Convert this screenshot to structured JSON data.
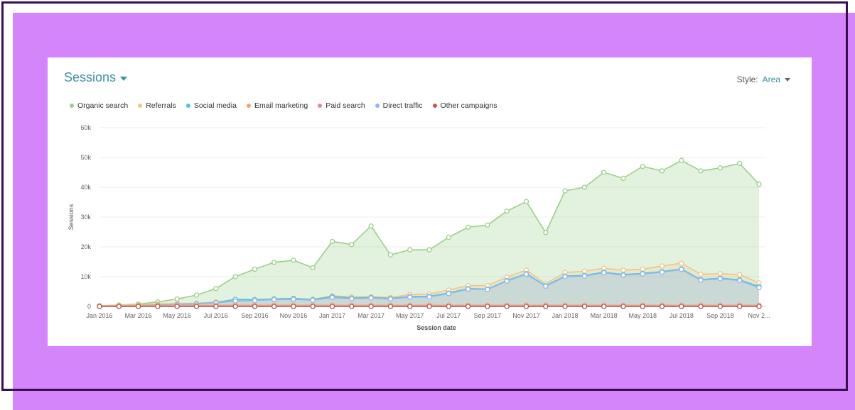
{
  "header": {
    "title": "Sessions",
    "style_label": "Style:",
    "style_value": "Area"
  },
  "colors": {
    "organic": "#9ccf8a",
    "referrals": "#f2c38b",
    "social": "#53c3d8",
    "email": "#f0a37a",
    "paid": "#df86ad",
    "direct": "#8fb7ec",
    "other": "#b95b50",
    "accent": "#3e8ea6",
    "background": "#d585fa",
    "frame": "#3a0f4f"
  },
  "legend": [
    {
      "label": "Organic search",
      "color": "#9ccf8a"
    },
    {
      "label": "Referrals",
      "color": "#f2c38b"
    },
    {
      "label": "Social media",
      "color": "#53c3d8"
    },
    {
      "label": "Email marketing",
      "color": "#f0a37a"
    },
    {
      "label": "Paid search",
      "color": "#df86ad"
    },
    {
      "label": "Direct traffic",
      "color": "#8fb7ec"
    },
    {
      "label": "Other campaigns",
      "color": "#b95b50"
    }
  ],
  "chart_data": {
    "type": "area",
    "xlabel": "Session date",
    "ylabel": "Sessions",
    "ylim": [
      0,
      60000
    ],
    "yticks": [
      "0",
      "10k",
      "20k",
      "30k",
      "40k",
      "50k",
      "60k"
    ],
    "x": [
      "Jan 2016",
      "Feb 2016",
      "Mar 2016",
      "Apr 2016",
      "May 2016",
      "Jun 2016",
      "Jul 2016",
      "Aug 2016",
      "Sep 2016",
      "Oct 2016",
      "Nov 2016",
      "Dec 2016",
      "Jan 2017",
      "Feb 2017",
      "Mar 2017",
      "Apr 2017",
      "May 2017",
      "Jun 2017",
      "Jul 2017",
      "Aug 2017",
      "Sep 2017",
      "Oct 2017",
      "Nov 2017",
      "Dec 2017",
      "Jan 2018",
      "Feb 2018",
      "Mar 2018",
      "Apr 2018",
      "May 2018",
      "Jun 2018",
      "Jul 2018",
      "Aug 2018",
      "Sep 2018",
      "Oct 2018",
      "Nov 2018"
    ],
    "xtick_labels": [
      "Jan 2016",
      "Mar 2016",
      "May 2016",
      "Jul 2016",
      "Sep 2016",
      "Nov 2016",
      "Jan 2017",
      "Mar 2017",
      "May 2017",
      "Jul 2017",
      "Sep 2017",
      "Nov 2017",
      "Jan 2018",
      "Mar 2018",
      "May 2018",
      "Jul 2018",
      "Sep 2018",
      "Nov 2..."
    ],
    "grid": true,
    "legend_position": "top-left",
    "series": [
      {
        "name": "Organic search",
        "color": "#9ccf8a",
        "values": [
          200,
          500,
          800,
          1500,
          2500,
          3800,
          6000,
          10000,
          12500,
          14800,
          15500,
          13000,
          21800,
          20800,
          27000,
          17300,
          19000,
          19000,
          23200,
          26600,
          27300,
          32000,
          35200,
          24800,
          38800,
          40000,
          45000,
          43000,
          47000,
          45500,
          49000,
          45500,
          46500,
          48000,
          41000
        ]
      },
      {
        "name": "Referrals",
        "color": "#f2c38b",
        "values": [
          250,
          400,
          550,
          800,
          1000,
          1100,
          1500,
          2000,
          2100,
          2600,
          2700,
          2400,
          3600,
          3200,
          3300,
          3000,
          4000,
          4200,
          5500,
          7000,
          7000,
          9800,
          12200,
          7600,
          11400,
          11800,
          12800,
          12200,
          12500,
          13600,
          14500,
          10800,
          11000,
          10700,
          7900
        ]
      },
      {
        "name": "Social media",
        "color": "#53c3d8",
        "values": [
          150,
          200,
          300,
          500,
          700,
          900,
          1300,
          2400,
          2300,
          2500,
          2700,
          2300,
          3300,
          2800,
          3000,
          2700,
          3300,
          3400,
          4500,
          6000,
          5800,
          8700,
          11000,
          7000,
          10200,
          10400,
          11500,
          10700,
          11100,
          11700,
          12600,
          9000,
          9500,
          8900,
          6700
        ]
      },
      {
        "name": "Email marketing",
        "color": "#f0a37a",
        "values": [
          200,
          200,
          250,
          300,
          350,
          350,
          400,
          400,
          400,
          400,
          400,
          400,
          400,
          400,
          400,
          400,
          400,
          400,
          400,
          400,
          400,
          400,
          400,
          400,
          400,
          400,
          400,
          400,
          400,
          400,
          400,
          400,
          400,
          400,
          400
        ]
      },
      {
        "name": "Paid search",
        "color": "#df86ad",
        "values": [
          0,
          0,
          0,
          0,
          0,
          0,
          0,
          0,
          0,
          0,
          0,
          0,
          0,
          0,
          0,
          0,
          0,
          0,
          0,
          0,
          0,
          0,
          0,
          0,
          0,
          0,
          0,
          0,
          0,
          0,
          0,
          0,
          0,
          0,
          0
        ]
      },
      {
        "name": "Direct traffic",
        "color": "#8fb7ec",
        "values": [
          150,
          200,
          300,
          400,
          600,
          800,
          1200,
          1800,
          2000,
          2300,
          2400,
          2100,
          3000,
          2600,
          2800,
          2500,
          3100,
          3200,
          4300,
          5800,
          5700,
          8500,
          10800,
          6800,
          10000,
          10200,
          11300,
          10500,
          10900,
          11500,
          12400,
          8800,
          9300,
          8700,
          6300
        ]
      },
      {
        "name": "Other campaigns",
        "color": "#b95b50",
        "values": [
          0,
          0,
          0,
          0,
          0,
          0,
          0,
          0,
          0,
          0,
          0,
          0,
          0,
          0,
          0,
          0,
          0,
          0,
          0,
          0,
          0,
          0,
          0,
          0,
          0,
          0,
          0,
          0,
          0,
          0,
          0,
          0,
          0,
          0,
          0
        ]
      }
    ]
  }
}
